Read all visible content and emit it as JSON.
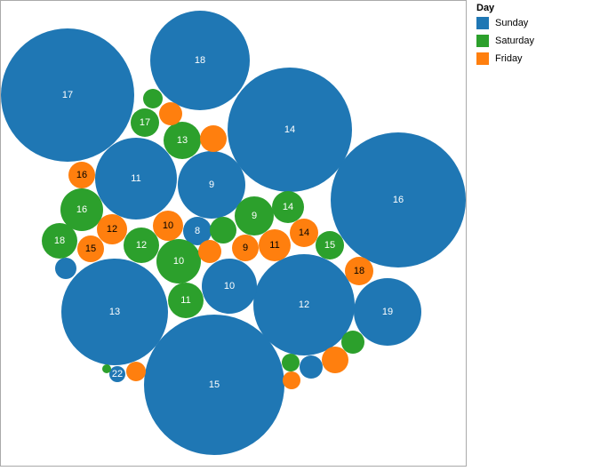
{
  "colors": {
    "Sunday": "#1f77b4",
    "Saturday": "#2ca02c",
    "Friday": "#ff7f0e",
    "frame": "#aaaaaa"
  },
  "legend": {
    "title": "Day",
    "items": [
      {
        "label": "Sunday",
        "color": "#1f77b4"
      },
      {
        "label": "Saturday",
        "color": "#2ca02c"
      },
      {
        "label": "Friday",
        "color": "#ff7f0e"
      }
    ]
  },
  "chart_data": {
    "type": "bubble",
    "legend_title": "Day",
    "legend_placement": "right",
    "bubbles": [
      {
        "day": "Sunday",
        "label": "17",
        "value": 17
      },
      {
        "day": "Sunday",
        "label": "18",
        "value": 18
      },
      {
        "day": "Sunday",
        "label": "14",
        "value": 14
      },
      {
        "day": "Sunday",
        "label": "16",
        "value": 16
      },
      {
        "day": "Sunday",
        "label": "11",
        "value": 11
      },
      {
        "day": "Sunday",
        "label": "9",
        "value": 9
      },
      {
        "day": "Sunday",
        "label": "13",
        "value": 13
      },
      {
        "day": "Sunday",
        "label": "12",
        "value": 12
      },
      {
        "day": "Sunday",
        "label": "15",
        "value": 15
      },
      {
        "day": "Sunday",
        "label": "19",
        "value": 19
      },
      {
        "day": "Sunday",
        "label": "10",
        "value": 10
      },
      {
        "day": "Sunday",
        "label": "8",
        "value": 8
      },
      {
        "day": "Sunday",
        "label": "22",
        "value": 22
      },
      {
        "day": "Sunday",
        "label": "",
        "value": null
      },
      {
        "day": "Sunday",
        "label": "",
        "value": null
      },
      {
        "day": "Saturday",
        "label": "17",
        "value": 17
      },
      {
        "day": "Saturday",
        "label": "13",
        "value": 13
      },
      {
        "day": "Saturday",
        "label": "16",
        "value": 16
      },
      {
        "day": "Saturday",
        "label": "18",
        "value": 18
      },
      {
        "day": "Saturday",
        "label": "12",
        "value": 12
      },
      {
        "day": "Saturday",
        "label": "10",
        "value": 10
      },
      {
        "day": "Saturday",
        "label": "11",
        "value": 11
      },
      {
        "day": "Saturday",
        "label": "9",
        "value": 9
      },
      {
        "day": "Saturday",
        "label": "14",
        "value": 14
      },
      {
        "day": "Saturday",
        "label": "15",
        "value": 15
      },
      {
        "day": "Saturday",
        "label": "",
        "value": null
      },
      {
        "day": "Saturday",
        "label": "",
        "value": null
      },
      {
        "day": "Saturday",
        "label": "",
        "value": null
      },
      {
        "day": "Saturday",
        "label": "",
        "value": null
      },
      {
        "day": "Saturday",
        "label": "",
        "value": null
      },
      {
        "day": "Friday",
        "label": "16",
        "value": 16
      },
      {
        "day": "Friday",
        "label": "12",
        "value": 12
      },
      {
        "day": "Friday",
        "label": "15",
        "value": 15
      },
      {
        "day": "Friday",
        "label": "10",
        "value": 10
      },
      {
        "day": "Friday",
        "label": "9",
        "value": 9
      },
      {
        "day": "Friday",
        "label": "11",
        "value": 11
      },
      {
        "day": "Friday",
        "label": "14",
        "value": 14
      },
      {
        "day": "Friday",
        "label": "18",
        "value": 18
      },
      {
        "day": "Friday",
        "label": "",
        "value": null
      },
      {
        "day": "Friday",
        "label": "",
        "value": null
      },
      {
        "day": "Friday",
        "label": "",
        "value": null
      },
      {
        "day": "Friday",
        "label": "",
        "value": null
      },
      {
        "day": "Friday",
        "label": "",
        "value": null
      },
      {
        "day": "Friday",
        "label": "",
        "value": null
      }
    ]
  }
}
